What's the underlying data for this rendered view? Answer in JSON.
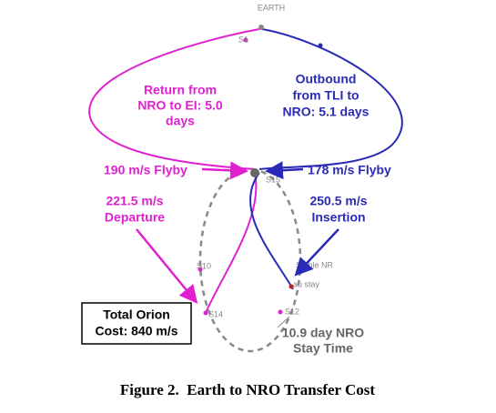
{
  "earth_label": "EARTH",
  "orbit_points": {
    "s1": "S1",
    "s10": "S10",
    "s14": "S14",
    "s12": "S12",
    "s15": "S15",
    "stable": "Stable NR",
    "stay": "au stay"
  },
  "return_label": {
    "lines": [
      "Return from",
      "NRO to EI: 5.0",
      "days"
    ]
  },
  "outbound_label": {
    "lines": [
      "Outbound",
      "from TLI to",
      "NRO: 5.1 days"
    ]
  },
  "flyby_return": "190 m/s Flyby",
  "flyby_outbound": "178 m/s Flyby",
  "departure": {
    "lines": [
      "221.5 m/s",
      "Departure"
    ]
  },
  "insertion": {
    "lines": [
      "250.5 m/s",
      "Insertion"
    ]
  },
  "total_cost": {
    "lines": [
      "Total Orion",
      "Cost: 840 m/s"
    ]
  },
  "stay_time": {
    "lines": [
      "10.9 day NRO",
      "Stay Time"
    ]
  },
  "caption": "Figure 2.  Earth to NRO Transfer Cost"
}
